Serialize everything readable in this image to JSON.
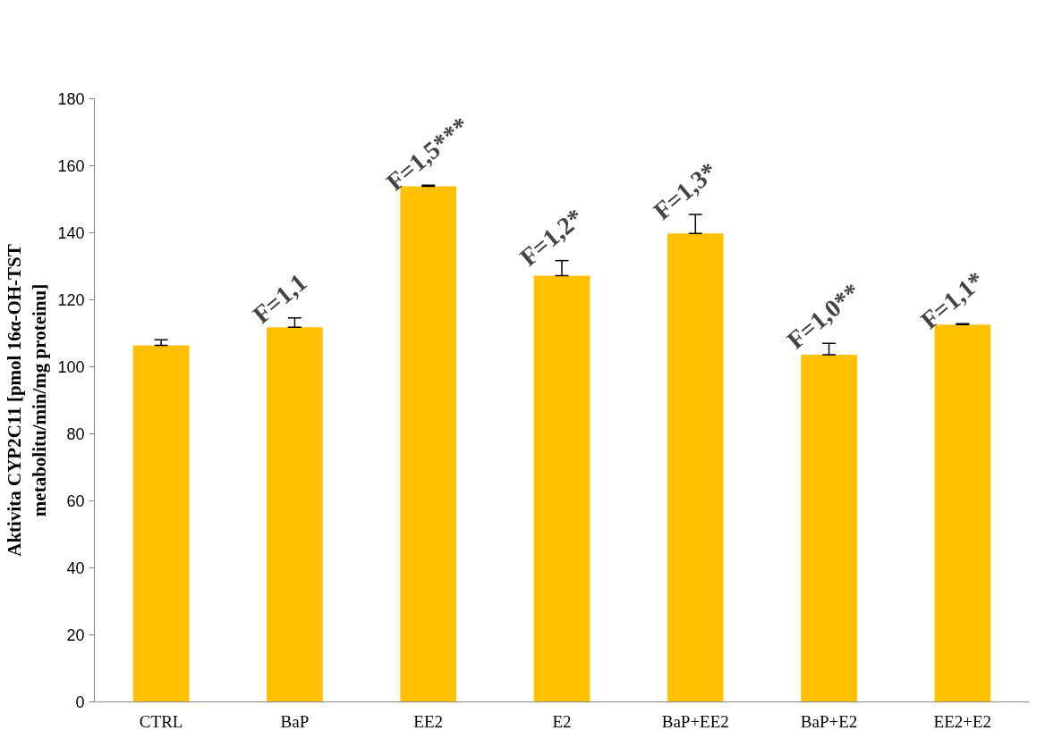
{
  "chart_data": {
    "type": "bar",
    "ylabel": "Aktivita CYP2C11 [pmol 16α-OH-TST\nmetabolitu/min/mg proteinu]",
    "categories": [
      "CTRL",
      "BaP",
      "EE2",
      "E2",
      "BaP+EE2",
      "BaP+E2",
      "EE2+E2"
    ],
    "values": [
      106.4,
      111.8,
      153.9,
      127.2,
      139.8,
      103.6,
      112.6
    ],
    "color": "#ffc000",
    "errors": [
      [
        106.4,
        108.1
      ],
      [
        111.8,
        114.6
      ],
      [
        153.9,
        154.2
      ],
      [
        127.2,
        131.7
      ],
      [
        139.8,
        145.5
      ],
      [
        103.6,
        107.0
      ],
      [
        112.6,
        112.9
      ]
    ],
    "ylim": [
      0,
      180
    ],
    "yticks": [
      0,
      20,
      40,
      60,
      80,
      100,
      120,
      140,
      160,
      180
    ],
    "grid": false,
    "annotations": [
      {
        "text": "F=1,1",
        "x": "BaP",
        "y": 114.6
      },
      {
        "text": "F=1,5***",
        "x": "EE2",
        "y": 154.2
      },
      {
        "text": "F=1,2*",
        "x": "E2",
        "y": 131.7
      },
      {
        "text": "F=1,3*",
        "x": "BaP+EE2",
        "y": 145.5
      },
      {
        "text": "F=1,0**",
        "x": "BaP+E2",
        "y": 107.0
      },
      {
        "text": "F=1,1*",
        "x": "EE2+E2",
        "y": 112.9
      }
    ]
  }
}
